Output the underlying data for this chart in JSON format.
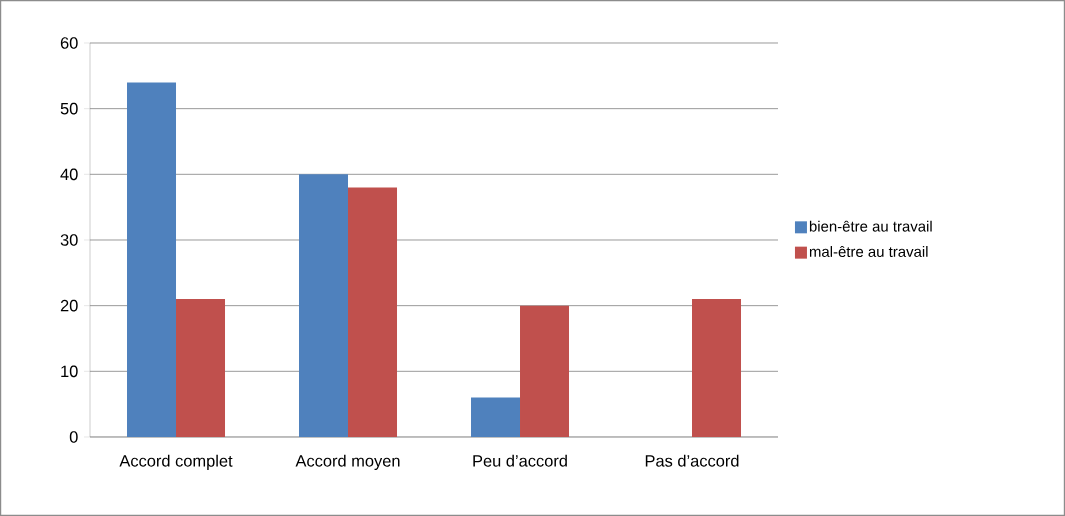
{
  "chart_data": {
    "type": "bar",
    "categories": [
      "Accord complet",
      "Accord moyen",
      "Peu d’accord",
      "Pas d’accord"
    ],
    "series": [
      {
        "name": "bien-être au travail",
        "color": "#4f81bd",
        "values": [
          54,
          40,
          6,
          0
        ]
      },
      {
        "name": "mal-être au travail",
        "color": "#c0504d",
        "values": [
          21,
          38,
          20,
          21
        ]
      }
    ],
    "ylim": [
      0,
      60
    ],
    "yticks": [
      0,
      10,
      20,
      30,
      40,
      50,
      60
    ],
    "grid": "y",
    "legend": "right"
  }
}
